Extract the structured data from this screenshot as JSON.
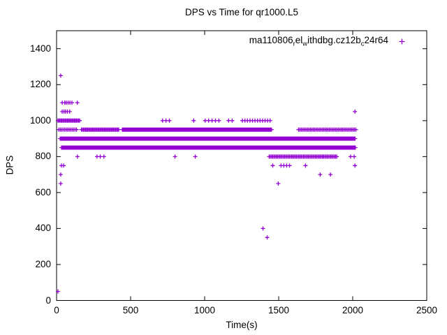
{
  "title": "DPS vs Time for qr1000.L5",
  "legend": {
    "label_plain": "ma110806_rel_withdbg.cz12b_c24r64",
    "label_parts": [
      {
        "text": "ma110806",
        "sub": false
      },
      {
        "text": "r",
        "sub": true
      },
      {
        "text": "el",
        "sub": false
      },
      {
        "text": "w",
        "sub": true
      },
      {
        "text": "ithdbg.cz12b",
        "sub": false
      },
      {
        "text": "c",
        "sub": true
      },
      {
        "text": "24r64",
        "sub": false
      }
    ],
    "marker": "plus",
    "marker_color": "#9400D3"
  },
  "axes": {
    "x": {
      "label": "Time(s)",
      "range": [
        0,
        2500
      ],
      "ticks": [
        0,
        500,
        1000,
        1500,
        2000,
        2500
      ]
    },
    "y": {
      "label": "DPS",
      "range": [
        0,
        1500
      ],
      "ticks": [
        0,
        200,
        400,
        600,
        800,
        1000,
        1200,
        1400
      ]
    }
  },
  "colors": {
    "marker": "#9400D3",
    "frame": "#000000",
    "background": "#ffffff",
    "text": "#000000"
  },
  "chart_data": {
    "type": "scatter",
    "title": "DPS vs Time for qr1000.L5",
    "xlabel": "Time(s)",
    "ylabel": "DPS",
    "xlim": [
      0,
      2500
    ],
    "ylim": [
      0,
      1500
    ],
    "grid": false,
    "legend_position": "top-right-inside",
    "marker_style": "plus",
    "series": [
      {
        "name": "ma110806_rel_withdbg.cz12b_c24r64",
        "color": "#9400D3",
        "points_encoding": "levels = constant DPS value; runs = [t_start, t_end, t_step] in seconds; singles = individual times in seconds",
        "levels": [
          {
            "dps": 1250,
            "runs": [],
            "singles": [
              28
            ]
          },
          {
            "dps": 1100,
            "runs": [],
            "singles": [
              38,
              55,
              65,
              78,
              90,
              104,
              140
            ]
          },
          {
            "dps": 1050,
            "runs": [],
            "singles": [
              38,
              50,
              61,
              73,
              88,
              2015
            ]
          },
          {
            "dps": 1000,
            "runs": [
              [
                9,
                160,
                7
              ],
              [
                716,
                763,
                23
              ],
              [
                1004,
                1098,
                23
              ],
              [
                1162,
                1186,
                24
              ],
              [
                1255,
                1445,
                17
              ]
            ],
            "singles": [
              926
            ]
          },
          {
            "dps": 950,
            "runs": [
              [
                15,
                140,
                10
              ],
              [
                168,
                420,
                7
              ],
              [
                444,
                1455,
                6
              ],
              [
                1634,
                2024,
                9
              ]
            ],
            "singles": []
          },
          {
            "dps": 900,
            "runs": [
              [
                24,
                2019,
                4
              ]
            ],
            "singles": []
          },
          {
            "dps": 850,
            "runs": [
              [
                33,
                2020,
                5
              ]
            ],
            "singles": []
          },
          {
            "dps": 800,
            "runs": [
              [
                1436,
                1897,
                8
              ]
            ],
            "singles": [
              141,
              273,
              295,
              320,
              800,
              937,
              1986,
              2010
            ]
          },
          {
            "dps": 750,
            "runs": [
              [
                1516,
                1591,
                19
              ]
            ],
            "singles": [
              33,
              47,
              1460,
              1681,
              2015
            ]
          },
          {
            "dps": 700,
            "runs": [],
            "singles": [
              28,
              1780,
              1850
            ]
          },
          {
            "dps": 650,
            "runs": [],
            "singles": [
              28,
              1497
            ]
          },
          {
            "dps": 400,
            "runs": [],
            "singles": [
              1394
            ]
          },
          {
            "dps": 350,
            "runs": [],
            "singles": [
              1422
            ]
          },
          {
            "dps": 50,
            "runs": [],
            "singles": [
              9
            ]
          }
        ]
      }
    ]
  }
}
